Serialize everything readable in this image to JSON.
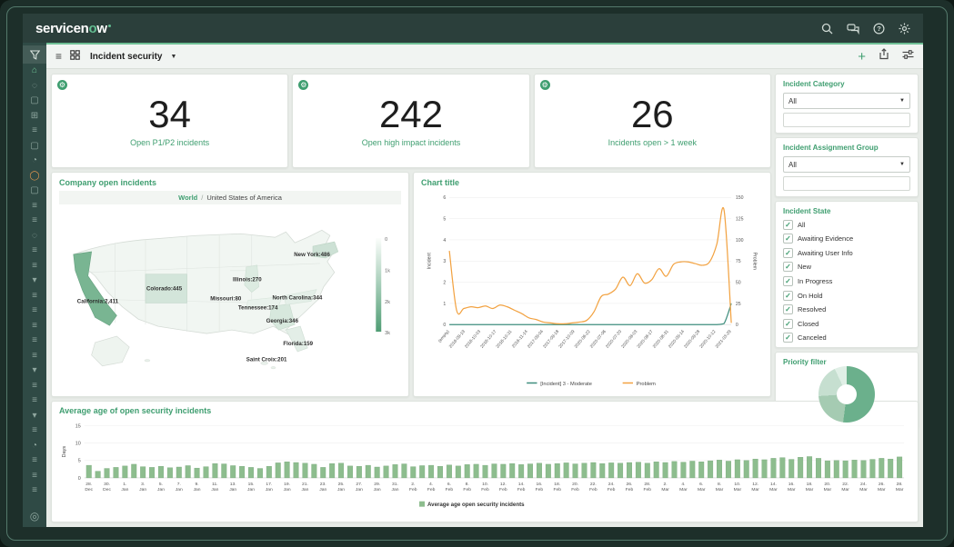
{
  "brand": {
    "logo_part1": "servicen",
    "logo_o": "o",
    "logo_part3": "w"
  },
  "header": {
    "icons": [
      "search-icon",
      "chat-icon",
      "help-icon",
      "gear-icon"
    ]
  },
  "toolbar": {
    "dashboard_name": "Incident security",
    "icons": [
      "menu-icon",
      "grid-icon",
      "caret-down-icon",
      "plus-icon",
      "export-icon",
      "sliders-icon"
    ]
  },
  "sidebar": {
    "items": [
      "funnel",
      "home",
      "circle",
      "folder",
      "grid",
      "list",
      "folder",
      "clock",
      "circle-orange",
      "folder",
      "list",
      "list",
      "circle",
      "list",
      "list",
      "triangle",
      "list",
      "list",
      "list",
      "list",
      "list",
      "triangle",
      "list",
      "list",
      "triangle",
      "list",
      "clock",
      "list",
      "list",
      "list"
    ],
    "bottom_item": "target"
  },
  "kpis": [
    {
      "value": "34",
      "label": "Open P1/P2 incidents"
    },
    {
      "value": "242",
      "label": "Open high impact incidents"
    },
    {
      "value": "26",
      "label": "Incidents open > 1 week"
    }
  ],
  "filters": {
    "category": {
      "label": "Incident Category",
      "value": "All"
    },
    "assignment_group": {
      "label": "Incident Assignment Group",
      "value": "All"
    },
    "state": {
      "label": "Incident State",
      "options": [
        "All",
        "Awaiting Evidence",
        "Awaiting User Info",
        "New",
        "In Progress",
        "On Hold",
        "Resolved",
        "Closed",
        "Canceled"
      ],
      "checked": [
        true,
        true,
        true,
        true,
        true,
        true,
        true,
        true,
        true
      ]
    },
    "priority": {
      "label": "Priority filter",
      "segments": [
        {
          "pct": 52,
          "color": "#6bb08c"
        },
        {
          "pct": 22,
          "color": "#a5cbb2"
        },
        {
          "pct": 19,
          "color": "#c6dfd0"
        },
        {
          "pct": 7,
          "color": "#e0efe6"
        }
      ]
    }
  },
  "chart_data": [
    {
      "type": "map",
      "title": "Company open incidents",
      "breadcrumb": [
        "World",
        "United States of America"
      ],
      "legend_ticks": [
        "0",
        "1k",
        "2k",
        "3k"
      ],
      "region_values": [
        {
          "name": "California",
          "value": "2,411",
          "x": 20,
          "y": 96
        },
        {
          "name": "Colorado",
          "value": "445",
          "x": 97,
          "y": 82
        },
        {
          "name": "Missouri",
          "value": "80",
          "x": 168,
          "y": 93
        },
        {
          "name": "Illinois",
          "value": "270",
          "x": 193,
          "y": 72
        },
        {
          "name": "New York",
          "value": "486",
          "x": 261,
          "y": 44
        },
        {
          "name": "North Carolina",
          "value": "344",
          "x": 237,
          "y": 92
        },
        {
          "name": "Tennessee",
          "value": "174",
          "x": 199,
          "y": 103
        },
        {
          "name": "Georgia",
          "value": "346",
          "x": 230,
          "y": 118
        },
        {
          "name": "Florida",
          "value": "159",
          "x": 249,
          "y": 143
        },
        {
          "name": "Saint Croix",
          "value": "201",
          "x": 208,
          "y": 161
        }
      ]
    },
    {
      "type": "line",
      "title": "Chart title",
      "ylabel_left": "Incident",
      "ylabel_right": "Problem",
      "ylim_left": [
        0,
        6
      ],
      "ylim_right": [
        0,
        150
      ],
      "y_left_ticks": [
        "0",
        "1",
        "2",
        "3",
        "4",
        "5",
        "6"
      ],
      "y_right_ticks": [
        "0",
        "25",
        "50",
        "75",
        "100",
        "125",
        "150"
      ],
      "x_labels": [
        "(empty)",
        "2016-09-19",
        "2016-10-03",
        "2016-10-17",
        "2016-10-31",
        "2016-11-14",
        "2017-09-04",
        "2017-09-18",
        "2017-10-09",
        "2020-06-22",
        "2020-07-06",
        "2020-07-20",
        "2020-08-03",
        "2020-08-17",
        "2020-08-31",
        "2020-09-14",
        "2020-09-28",
        "2020-10-12",
        "2021-03-29"
      ],
      "legend_position": "bottom",
      "series": [
        {
          "name": "[Incident] 3 - Moderate",
          "color": "#3f8e7e",
          "axis": "left",
          "values": [
            0,
            0,
            0,
            0,
            0,
            0,
            0,
            0,
            0,
            0,
            0,
            0,
            0,
            0,
            0,
            0,
            0,
            0,
            0,
            0,
            0,
            0,
            0,
            0,
            0,
            0,
            0,
            0,
            0,
            0,
            0,
            0,
            0,
            0,
            0,
            0,
            0,
            0,
            0.05,
            1.0
          ]
        },
        {
          "name": "Problem",
          "color": "#f2a241",
          "axis": "right",
          "values": [
            87,
            17,
            19,
            21,
            20,
            22,
            19,
            23,
            21,
            17,
            13,
            8,
            6,
            3,
            2,
            1,
            1,
            2,
            3,
            5,
            15,
            33,
            36,
            42,
            56,
            46,
            60,
            49,
            53,
            66,
            57,
            71,
            74,
            74,
            72,
            70,
            74,
            95,
            135,
            2
          ]
        }
      ]
    },
    {
      "type": "bar",
      "title": "Average age of open security incidents",
      "ylabel": "Days",
      "ylim": [
        0,
        15
      ],
      "yticks": [
        "0",
        "5",
        "10",
        "15"
      ],
      "legend": "Average age open security incidents",
      "color": "#8dbd8e",
      "x_labels": [
        "28. Dec",
        "30. Dec",
        "1. Jan",
        "3. Jan",
        "5. Jan",
        "7. Jan",
        "9. Jan",
        "11. Jan",
        "13. Jan",
        "15. Jan",
        "17. Jan",
        "19. Jan",
        "21. Jan",
        "23. Jan",
        "25. Jan",
        "27. Jan",
        "29. Jan",
        "31. Jan",
        "2. Feb",
        "4. Feb",
        "6. Feb",
        "8. Feb",
        "10. Feb",
        "12. Feb",
        "14. Feb",
        "16. Feb",
        "18. Feb",
        "20. Feb",
        "22. Feb",
        "24. Feb",
        "26. Feb",
        "28. Feb",
        "2. Mar",
        "4. Mar",
        "6. Mar",
        "8. Mar",
        "10. Mar",
        "12. Mar",
        "14. Mar",
        "16. Mar",
        "18. Mar",
        "20. Mar",
        "22. Mar",
        "24. Mar",
        "26. Mar",
        "28. Mar"
      ],
      "values": [
        3.6,
        1.9,
        2.7,
        3.0,
        3.4,
        3.9,
        3.2,
        3.0,
        3.3,
        2.9,
        3.1,
        3.5,
        2.8,
        3.2,
        4.1,
        4.0,
        3.5,
        3.3,
        3.0,
        2.7,
        3.3,
        4.3,
        4.6,
        4.4,
        4.2,
        3.9,
        3.0,
        4.1,
        4.2,
        3.4,
        3.3,
        3.6,
        3.1,
        3.4,
        3.8,
        4.0,
        3.2,
        3.5,
        3.6,
        3.3,
        3.7,
        3.4,
        3.8,
        3.9,
        3.6,
        4.0,
        3.9,
        4.1,
        3.8,
        4.0,
        4.2,
        3.9,
        4.1,
        4.3,
        4.0,
        4.2,
        4.4,
        4.1,
        4.3,
        4.2,
        4.4,
        4.5,
        4.2,
        4.6,
        4.4,
        4.7,
        4.5,
        4.8,
        4.6,
        4.9,
        5.1,
        4.8,
        5.2,
        5.0,
        5.4,
        5.2,
        5.6,
        5.8,
        5.3,
        5.9,
        6.1,
        5.6,
        4.9,
        5.0,
        4.9,
        5.1,
        5.0,
        5.3,
        5.6,
        5.4,
        6.0
      ]
    }
  ],
  "colors": {
    "accent_green": "#3f9e70",
    "bar_green": "#8dbd8e",
    "line_orange": "#f2a241",
    "line_teal": "#3f8e7e",
    "map_dark_state": "#79b592"
  }
}
